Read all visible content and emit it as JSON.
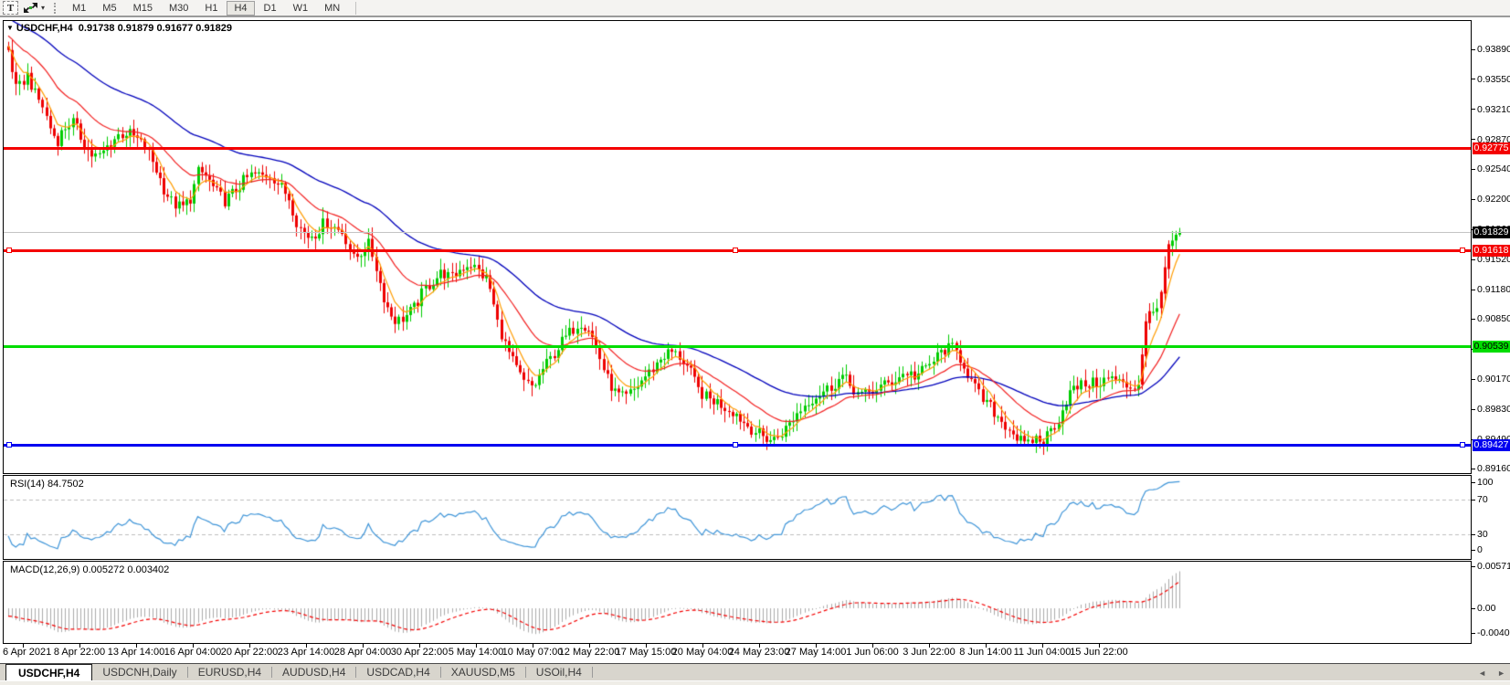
{
  "toolbar": {
    "text_tool_label": "T",
    "timeframes": [
      {
        "label": "M1",
        "active": false
      },
      {
        "label": "M5",
        "active": false
      },
      {
        "label": "M15",
        "active": false
      },
      {
        "label": "M30",
        "active": false
      },
      {
        "label": "H1",
        "active": false
      },
      {
        "label": "H4",
        "active": true
      },
      {
        "label": "D1",
        "active": false
      },
      {
        "label": "W1",
        "active": false
      },
      {
        "label": "MN",
        "active": false
      }
    ]
  },
  "icons": {
    "collapse_triangle": "▼",
    "dropdown_caret": "▾",
    "tab_scroll_left": "◄",
    "tab_scroll_right": "►"
  },
  "chart": {
    "symbol_title": "USDCHF,H4",
    "ohlc": {
      "open": "0.91738",
      "high": "0.91879",
      "low": "0.91677",
      "close": "0.91829"
    },
    "price_ticks": [
      "0.93890",
      "0.93550",
      "0.93210",
      "0.92870",
      "0.92540",
      "0.92200",
      "0.91860",
      "0.91520",
      "0.91180",
      "0.90850",
      "0.90510",
      "0.90170",
      "0.89830",
      "0.89490",
      "0.89160"
    ],
    "current_price": "0.91829",
    "current_price_tag_bg": "#000000",
    "current_price_tag_text": "#ffffff",
    "levels": [
      {
        "name": "resistance-upper",
        "price": "0.92775",
        "value": 0.92775,
        "color": "#f40000",
        "tag_text": "#ffffff",
        "handles": false
      },
      {
        "name": "resistance-lower",
        "price": "0.91618",
        "value": 0.91618,
        "color": "#f40000",
        "tag_text": "#ffffff",
        "handles": true
      },
      {
        "name": "mid-support",
        "price": "0.90539",
        "value": 0.90539,
        "color": "#00dd00",
        "tag_text": "#000000",
        "handles": false
      },
      {
        "name": "major-support",
        "price": "0.89427",
        "value": 0.89427,
        "color": "#0000f0",
        "tag_text": "#ffffff",
        "handles": true
      }
    ]
  },
  "rsi_panel": {
    "label": "RSI(14) 84.7502",
    "ticks": [
      {
        "label": "100",
        "value": 100
      },
      {
        "label": "70",
        "value": 70
      },
      {
        "label": "30",
        "value": 30
      },
      {
        "label": "0",
        "value": 0
      }
    ],
    "dashed_levels": [
      70,
      30
    ],
    "line_color": "#3f95d8"
  },
  "macd_panel": {
    "label": "MACD(12,26,9) 0.005272 0.003402",
    "ticks": [
      {
        "label": "0.005718",
        "value": 0.005718
      },
      {
        "label": "0.00",
        "value": 0
      },
      {
        "label": "-0.00409",
        "value": -0.004094
      }
    ],
    "histogram_color": "#ababab",
    "signal_color": "#f40000"
  },
  "time_axis": [
    "6 Apr 2021",
    "8 Apr 22:00",
    "13 Apr 14:00",
    "16 Apr 04:00",
    "20 Apr 22:00",
    "23 Apr 14:00",
    "28 Apr 04:00",
    "30 Apr 22:00",
    "5 May 14:00",
    "10 May 07:00",
    "12 May 22:00",
    "17 May 15:00",
    "20 May 04:00",
    "24 May 23:00",
    "27 May 14:00",
    "1 Jun 06:00",
    "3 Jun 22:00",
    "8 Jun 14:00",
    "11 Jun 04:00",
    "15 Jun 22:00"
  ],
  "tabs": [
    {
      "label": "USDCHF,H4",
      "active": true
    },
    {
      "label": "USDCNH,Daily",
      "active": false
    },
    {
      "label": "EURUSD,H4",
      "active": false
    },
    {
      "label": "AUDUSD,H4",
      "active": false
    },
    {
      "label": "USDCAD,H4",
      "active": false
    },
    {
      "label": "XAUUSD,M5",
      "active": false
    },
    {
      "label": "USOil,H4",
      "active": false
    }
  ],
  "chart_data": {
    "type": "candlestick",
    "symbol": "USDCHF",
    "timeframe": "H4",
    "title": "USDCHF,H4",
    "ohlc_current": {
      "open": 0.91738,
      "high": 0.91879,
      "low": 0.91677,
      "close": 0.91829
    },
    "x_range": {
      "start": "6 Apr 2021",
      "end": "16 Jun 2021"
    },
    "y_axis": {
      "min": 0.8905,
      "max": 0.9405,
      "tick_step": 0.0034
    },
    "colors": {
      "up": "#00cc00",
      "down": "#ee0000",
      "ma_fast": "#ff9c00",
      "ma_mid": "#f22020",
      "ma_slow": "#0000bb"
    },
    "moving_averages": [
      {
        "name": "fast",
        "period": 6,
        "color": "#ff9c00"
      },
      {
        "name": "mid",
        "period": 21,
        "color": "#f22020"
      },
      {
        "name": "slow",
        "period": 55,
        "color": "#0000bb"
      }
    ],
    "horizontal_lines": [
      0.92775,
      0.91618,
      0.90539,
      0.89427
    ],
    "indicators": [
      {
        "type": "rsi",
        "period": 14,
        "current": 84.7502,
        "overbought": 70,
        "oversold": 30
      },
      {
        "type": "macd",
        "fast": 12,
        "slow": 26,
        "signal": 9,
        "current_main": 0.005272,
        "current_signal": 0.003402,
        "axis_max": 0.005718,
        "axis_min": -0.004094
      }
    ],
    "close_path_anchors": [
      [
        5,
        0.9388
      ],
      [
        10,
        0.9362
      ],
      [
        14,
        0.934
      ],
      [
        20,
        0.9352
      ],
      [
        26,
        0.936
      ],
      [
        34,
        0.9338
      ],
      [
        42,
        0.9326
      ],
      [
        50,
        0.9302
      ],
      [
        58,
        0.9285
      ],
      [
        66,
        0.93
      ],
      [
        75,
        0.9308
      ],
      [
        85,
        0.9288
      ],
      [
        95,
        0.927
      ],
      [
        105,
        0.9268
      ],
      [
        115,
        0.9282
      ],
      [
        125,
        0.9292
      ],
      [
        135,
        0.9295
      ],
      [
        145,
        0.9288
      ],
      [
        155,
        0.9278
      ],
      [
        165,
        0.9258
      ],
      [
        175,
        0.9232
      ],
      [
        185,
        0.9215
      ],
      [
        195,
        0.921
      ],
      [
        205,
        0.9222
      ],
      [
        213,
        0.9252
      ],
      [
        222,
        0.9245
      ],
      [
        232,
        0.9228
      ],
      [
        242,
        0.9218
      ],
      [
        252,
        0.9228
      ],
      [
        262,
        0.924
      ],
      [
        272,
        0.9248
      ],
      [
        282,
        0.9246
      ],
      [
        292,
        0.9248
      ],
      [
        302,
        0.9235
      ],
      [
        312,
        0.9222
      ],
      [
        322,
        0.919
      ],
      [
        332,
        0.9178
      ],
      [
        342,
        0.9182
      ],
      [
        352,
        0.9195
      ],
      [
        362,
        0.9188
      ],
      [
        372,
        0.9182
      ],
      [
        382,
        0.9152
      ],
      [
        390,
        0.9158
      ],
      [
        398,
        0.9172
      ],
      [
        406,
        0.915
      ],
      [
        414,
        0.9115
      ],
      [
        422,
        0.9092
      ],
      [
        430,
        0.9082
      ],
      [
        440,
        0.9088
      ],
      [
        450,
        0.9098
      ],
      [
        460,
        0.9118
      ],
      [
        470,
        0.9128
      ],
      [
        480,
        0.9138
      ],
      [
        490,
        0.913
      ],
      [
        500,
        0.9142
      ],
      [
        510,
        0.9148
      ],
      [
        520,
        0.9138
      ],
      [
        530,
        0.9128
      ],
      [
        540,
        0.9082
      ],
      [
        550,
        0.9052
      ],
      [
        560,
        0.903
      ],
      [
        570,
        0.9012
      ],
      [
        580,
        0.9008
      ],
      [
        590,
        0.9028
      ],
      [
        600,
        0.9042
      ],
      [
        610,
        0.9058
      ],
      [
        620,
        0.907
      ],
      [
        630,
        0.9082
      ],
      [
        640,
        0.9075
      ],
      [
        650,
        0.9048
      ],
      [
        660,
        0.9018
      ],
      [
        670,
        0.9
      ],
      [
        680,
        0.8995
      ],
      [
        690,
        0.9005
      ],
      [
        700,
        0.9018
      ],
      [
        710,
        0.9028
      ],
      [
        720,
        0.9042
      ],
      [
        730,
        0.9048
      ],
      [
        740,
        0.9042
      ],
      [
        750,
        0.9028
      ],
      [
        760,
        0.9005
      ],
      [
        770,
        0.8995
      ],
      [
        780,
        0.8992
      ],
      [
        790,
        0.8985
      ],
      [
        800,
        0.898
      ],
      [
        810,
        0.8968
      ],
      [
        820,
        0.896
      ],
      [
        830,
        0.8952
      ],
      [
        842,
        0.8948
      ],
      [
        855,
        0.896
      ],
      [
        868,
        0.8978
      ],
      [
        880,
        0.8992
      ],
      [
        892,
        0.9
      ],
      [
        905,
        0.9008
      ],
      [
        918,
        0.902
      ],
      [
        928,
        0.9008
      ],
      [
        938,
        0.8998
      ],
      [
        948,
        0.9002
      ],
      [
        958,
        0.9008
      ],
      [
        968,
        0.9012
      ],
      [
        978,
        0.9018
      ],
      [
        988,
        0.9025
      ],
      [
        998,
        0.902
      ],
      [
        1008,
        0.9028
      ],
      [
        1018,
        0.9038
      ],
      [
        1028,
        0.905
      ],
      [
        1040,
        0.9052
      ],
      [
        1050,
        0.9035
      ],
      [
        1060,
        0.9012
      ],
      [
        1070,
        0.8995
      ],
      [
        1080,
        0.8985
      ],
      [
        1090,
        0.8972
      ],
      [
        1100,
        0.8962
      ],
      [
        1110,
        0.895
      ],
      [
        1120,
        0.894
      ],
      [
        1128,
        0.8952
      ],
      [
        1136,
        0.8945
      ],
      [
        1145,
        0.8958
      ],
      [
        1155,
        0.8972
      ],
      [
        1165,
        0.9
      ],
      [
        1175,
        0.9008
      ],
      [
        1185,
        0.9012
      ],
      [
        1195,
        0.9012
      ],
      [
        1205,
        0.9016
      ],
      [
        1215,
        0.9018
      ],
      [
        1225,
        0.901
      ],
      [
        1235,
        0.9008
      ],
      [
        1243,
        0.9012
      ],
      [
        1249,
        0.9082
      ],
      [
        1255,
        0.909
      ],
      [
        1261,
        0.9088
      ],
      [
        1267,
        0.9122
      ],
      [
        1273,
        0.9155
      ],
      [
        1279,
        0.9172
      ],
      [
        1285,
        0.918
      ],
      [
        1290,
        0.91829
      ]
    ]
  }
}
